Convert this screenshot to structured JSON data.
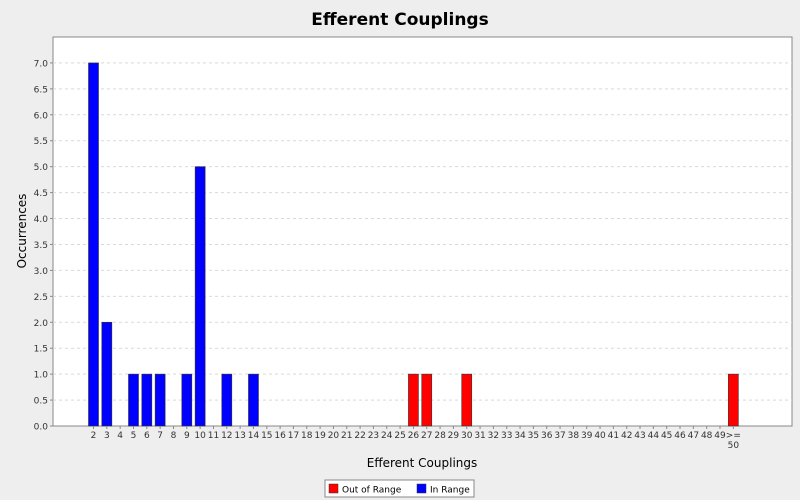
{
  "chart_data": {
    "type": "bar",
    "title": "Efferent Couplings",
    "xlabel": "Efferent Couplings",
    "ylabel": "Occurrences",
    "ylim": [
      0,
      7.5
    ],
    "yticks": [
      "0.0",
      "0.5",
      "1.0",
      "1.5",
      "2.0",
      "2.5",
      "3.0",
      "3.5",
      "4.0",
      "4.5",
      "5.0",
      "5.5",
      "6.0",
      "6.5",
      "7.0"
    ],
    "grid": true,
    "legend_placement": "bottom-center",
    "categories": [
      "2",
      "3",
      "4",
      "5",
      "6",
      "7",
      "8",
      "9",
      "10",
      "11",
      "12",
      "13",
      "14",
      "15",
      "16",
      "17",
      "18",
      "19",
      "20",
      "21",
      "22",
      "23",
      "24",
      "25",
      "26",
      "27",
      "28",
      "29",
      "30",
      "31",
      "32",
      "33",
      "34",
      "35",
      "36",
      "37",
      "38",
      "39",
      "40",
      "41",
      "42",
      "43",
      "44",
      "45",
      "46",
      "47",
      "48",
      "49",
      ">=\n50"
    ],
    "series": [
      {
        "name": "Out of Range",
        "color": "#ff0000",
        "values": [
          0,
          0,
          0,
          0,
          0,
          0,
          0,
          0,
          0,
          0,
          0,
          0,
          0,
          0,
          0,
          0,
          0,
          0,
          0,
          0,
          0,
          0,
          0,
          0,
          1,
          1,
          0,
          0,
          1,
          0,
          0,
          0,
          0,
          0,
          0,
          0,
          0,
          0,
          0,
          0,
          0,
          0,
          0,
          0,
          0,
          0,
          0,
          0,
          1
        ]
      },
      {
        "name": "In Range",
        "color": "#0000ff",
        "values": [
          7,
          2,
          0,
          1,
          1,
          1,
          0,
          1,
          5,
          0,
          1,
          0,
          1,
          0,
          0,
          0,
          0,
          0,
          0,
          0,
          0,
          0,
          0,
          0,
          0,
          0,
          0,
          0,
          0,
          0,
          0,
          0,
          0,
          0,
          0,
          0,
          0,
          0,
          0,
          0,
          0,
          0,
          0,
          0,
          0,
          0,
          0,
          0,
          0
        ]
      }
    ]
  }
}
